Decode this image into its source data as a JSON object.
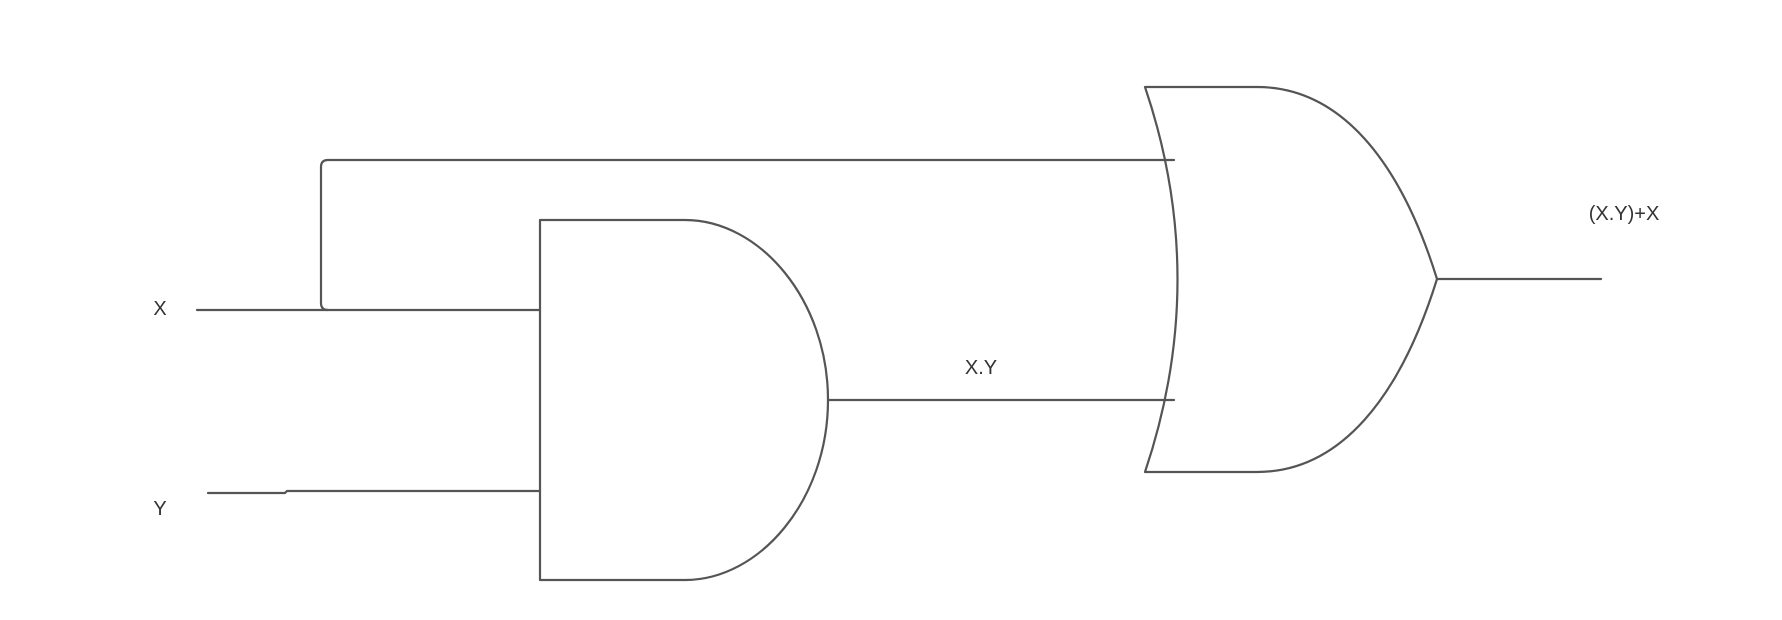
{
  "diagram": {
    "type": "logic-circuit",
    "inputs": {
      "x": "X",
      "y": "Y"
    },
    "and_gate": {
      "output_label": "X.Y"
    },
    "or_gate": {
      "output_label": "(X.Y)+X"
    }
  },
  "colors": {
    "stroke": "#555555",
    "text": "#333333",
    "background": "#ffffff"
  }
}
